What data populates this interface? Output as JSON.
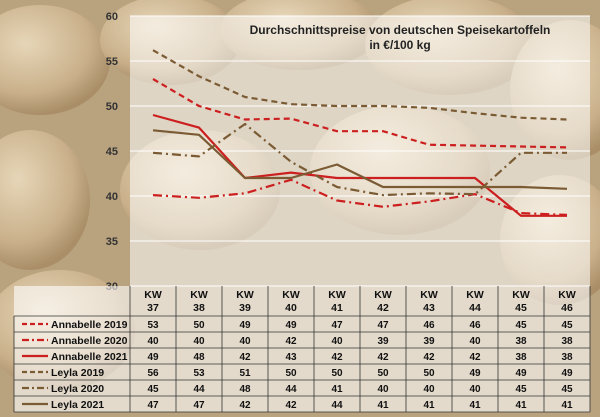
{
  "chart_data": {
    "type": "line",
    "title": "Durchschnittspreise von deutschen Speisekartoffeln",
    "subtitle": "in €/100 kg",
    "ylim": [
      30,
      60
    ],
    "yticks": [
      30,
      35,
      40,
      45,
      50,
      55,
      60
    ],
    "grid": true,
    "legend": "table-below",
    "categories": [
      "KW 37",
      "KW 38",
      "KW 39",
      "KW 40",
      "KW 41",
      "KW 42",
      "KW 43",
      "KW 44",
      "KW 45",
      "KW 46"
    ],
    "series": [
      {
        "name": "Annabelle 2019",
        "color": "#cc1f1f",
        "dash": "dashed",
        "values": [
          53,
          50,
          48.5,
          48.6,
          47.2,
          47.2,
          45.7,
          45.6,
          45.5,
          45.4
        ],
        "table_values": [
          "53",
          "50",
          "49",
          "49",
          "47",
          "47",
          "46",
          "46",
          "45",
          "45"
        ]
      },
      {
        "name": "Annabelle 2020",
        "color": "#cc1f1f",
        "dash": "dashdot",
        "values": [
          40.1,
          39.8,
          40.3,
          41.8,
          39.5,
          38.8,
          39.4,
          40.2,
          38.1,
          37.9
        ],
        "table_values": [
          "40",
          "40",
          "40",
          "42",
          "40",
          "39",
          "39",
          "40",
          "38",
          "38"
        ]
      },
      {
        "name": "Annabelle 2021",
        "color": "#cc1f1f",
        "dash": "solid",
        "values": [
          49,
          47.6,
          42,
          42.6,
          42,
          42,
          42,
          42,
          37.8,
          37.8
        ],
        "table_values": [
          "49",
          "48",
          "42",
          "43",
          "42",
          "42",
          "42",
          "42",
          "38",
          "38"
        ]
      },
      {
        "name": "Leyla 2019",
        "color": "#7a5b33",
        "dash": "dashed",
        "values": [
          56.2,
          53.3,
          51,
          50.2,
          50,
          50,
          49.8,
          49.2,
          48.7,
          48.5
        ],
        "table_values": [
          "56",
          "53",
          "51",
          "50",
          "50",
          "50",
          "50",
          "49",
          "49",
          "49"
        ]
      },
      {
        "name": "Leyla 2020",
        "color": "#7a5b33",
        "dash": "dashdot",
        "values": [
          44.8,
          44.4,
          48,
          43.8,
          41,
          40.1,
          40.3,
          40.2,
          44.8,
          44.8
        ],
        "table_values": [
          "45",
          "44",
          "48",
          "44",
          "41",
          "40",
          "40",
          "40",
          "45",
          "45"
        ]
      },
      {
        "name": "Leyla 2021",
        "color": "#7a5b33",
        "dash": "solid",
        "values": [
          47.3,
          46.8,
          42,
          42,
          43.5,
          41,
          41,
          41,
          41,
          40.8
        ],
        "table_values": [
          "47",
          "47",
          "42",
          "42",
          "44",
          "41",
          "41",
          "41",
          "41",
          "41"
        ]
      }
    ]
  }
}
